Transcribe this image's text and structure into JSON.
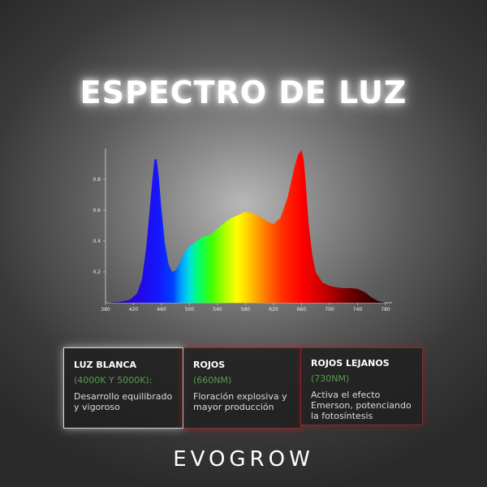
{
  "title": "ESPECTRO DE LUZ",
  "chart_data": {
    "type": "area",
    "title": "",
    "xlabel": "",
    "ylabel": "",
    "xlim": [
      380,
      780
    ],
    "ylim": [
      0,
      1.0
    ],
    "x_ticks": [
      380,
      420,
      460,
      500,
      540,
      580,
      620,
      660,
      700,
      740,
      780
    ],
    "y_ticks": [
      0.2,
      0.4,
      0.6,
      0.8
    ],
    "grid": false,
    "x": [
      380,
      400,
      415,
      425,
      432,
      438,
      443,
      447,
      450,
      453,
      456,
      460,
      465,
      470,
      475,
      480,
      485,
      490,
      495,
      500,
      505,
      510,
      520,
      530,
      540,
      550,
      560,
      570,
      580,
      590,
      600,
      610,
      620,
      630,
      640,
      645,
      650,
      655,
      660,
      663,
      666,
      670,
      675,
      680,
      690,
      700,
      710,
      720,
      730,
      740,
      750,
      760,
      770,
      780
    ],
    "y": [
      0.0,
      0.005,
      0.02,
      0.06,
      0.15,
      0.35,
      0.6,
      0.8,
      0.93,
      0.93,
      0.82,
      0.6,
      0.38,
      0.25,
      0.2,
      0.21,
      0.25,
      0.3,
      0.34,
      0.37,
      0.38,
      0.4,
      0.43,
      0.44,
      0.48,
      0.52,
      0.55,
      0.57,
      0.59,
      0.58,
      0.56,
      0.53,
      0.51,
      0.55,
      0.68,
      0.78,
      0.88,
      0.96,
      0.99,
      0.93,
      0.78,
      0.52,
      0.32,
      0.2,
      0.13,
      0.11,
      0.1,
      0.095,
      0.095,
      0.09,
      0.07,
      0.035,
      0.01,
      0.0
    ]
  },
  "cards": [
    {
      "title": "LUZ BLANCA",
      "subtitle": "(4000K Y 5000K):",
      "desc_1": "Desarrollo equilibrado",
      "desc_2": "y vigoroso"
    },
    {
      "title": "ROJOS",
      "subtitle": "(660NM)",
      "desc_1": "Floración explosiva y",
      "desc_2": "mayor producción"
    },
    {
      "title": "ROJOS LEJANOS",
      "subtitle": "(730NM)",
      "desc_1": "Activa el efecto",
      "desc_2": "Emerson, potenciando",
      "desc_3": "la fotosíntesis"
    }
  ],
  "brand": "EVOGROW"
}
